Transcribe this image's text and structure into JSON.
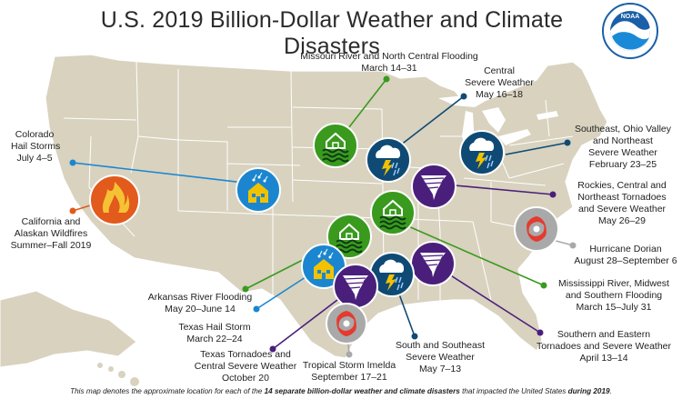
{
  "title": "U.S. 2019 Billion-Dollar Weather and Climate Disasters",
  "logo": {
    "text": "NOAA",
    "ring_text": "NATIONAL OCEANIC AND ATMOSPHERIC ADMINISTRATION · U.S. DEPARTMENT OF COMMERCE"
  },
  "colors": {
    "land": "#d8d2bf",
    "border": "#ffffff",
    "water": "#ffffff",
    "green": "#3a9a1e",
    "blue": "#1b86cf",
    "purple": "#4a1f7c",
    "navy": "#0f4a75",
    "orange": "#e25a1c",
    "gray": "#a9a9a9",
    "red": "#e53a2f"
  },
  "events": [
    {
      "id": "colorado-hail",
      "icon": "hail-house-icon",
      "lines": [
        "Colorado",
        "Hail Storms",
        "July 4–5"
      ]
    },
    {
      "id": "california-wildfires",
      "icon": "wildfire-icon",
      "lines": [
        "California and",
        "Alaskan Wildfires",
        "Summer–Fall 2019"
      ]
    },
    {
      "id": "missouri-flooding",
      "icon": "flood-house-icon",
      "lines": [
        "Missouri River and North Central Flooding",
        "March 14–31"
      ]
    },
    {
      "id": "central-severe",
      "icon": "storm-cloud-icon",
      "lines": [
        "Central",
        "Severe Weather",
        "May 16–18"
      ]
    },
    {
      "id": "southeast-ohio",
      "icon": "storm-cloud-icon",
      "lines": [
        "Southeast, Ohio Valley",
        "and Northeast",
        "Severe Weather",
        "February 23–25"
      ]
    },
    {
      "id": "rockies-tornadoes",
      "icon": "tornado-icon",
      "lines": [
        "Rockies, Central and",
        "Northeast Tornadoes",
        "and Severe Weather",
        "May 26–29"
      ]
    },
    {
      "id": "hurricane-dorian",
      "icon": "hurricane-icon",
      "lines": [
        "Hurricane Dorian",
        "August 28–September 6"
      ]
    },
    {
      "id": "mississippi-flooding",
      "icon": "flood-house-icon",
      "lines": [
        "Mississippi River, Midwest",
        "and Southern Flooding",
        "March 15–July 31"
      ]
    },
    {
      "id": "southern-eastern-tornadoes",
      "icon": "tornado-icon",
      "lines": [
        "Southern and Eastern",
        "Tornadoes and Severe Weather",
        "April 13–14"
      ]
    },
    {
      "id": "south-southeast-severe",
      "icon": "storm-cloud-icon",
      "lines": [
        "South and Southeast",
        "Severe Weather",
        "May 7–13"
      ]
    },
    {
      "id": "tropical-storm-imelda",
      "icon": "hurricane-icon",
      "lines": [
        "Tropical Storm Imelda",
        "September 17–21"
      ]
    },
    {
      "id": "texas-tornadoes",
      "icon": "tornado-icon",
      "lines": [
        "Texas Tornadoes and",
        "Central Severe Weather",
        "October 20"
      ]
    },
    {
      "id": "texas-hail",
      "icon": "hail-house-icon",
      "lines": [
        "Texas Hail Storm",
        "March 22–24"
      ]
    },
    {
      "id": "arkansas-flooding",
      "icon": "flood-house-icon",
      "lines": [
        "Arkansas River Flooding",
        "May 20–June 14"
      ]
    }
  ],
  "footer": {
    "part1": "This map denotes the approximate location for each of the ",
    "bold1": "14 separate billion-dollar weather and climate disasters",
    "part2": " that impacted the United States ",
    "bold2": "during 2019",
    "part3": "."
  }
}
